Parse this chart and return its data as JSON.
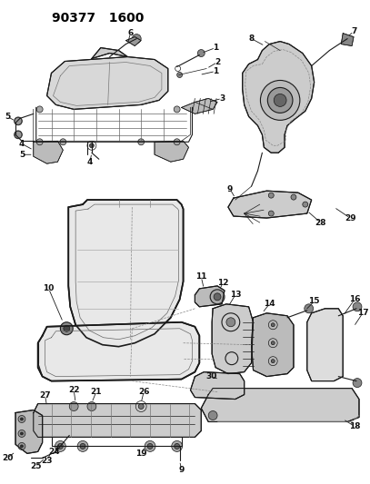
{
  "title": "90377   1600",
  "bg_color": "#ffffff",
  "line_color": "#1a1a1a",
  "fig_width": 4.07,
  "fig_height": 5.33,
  "dpi": 100,
  "header_fontsize": 10,
  "label_fontsize": 6.5,
  "lw_thin": 0.5,
  "lw_med": 0.8,
  "lw_thick": 1.2,
  "gray_fill": "#aaaaaa",
  "dark_fill": "#555555",
  "mid_gray": "#888888"
}
